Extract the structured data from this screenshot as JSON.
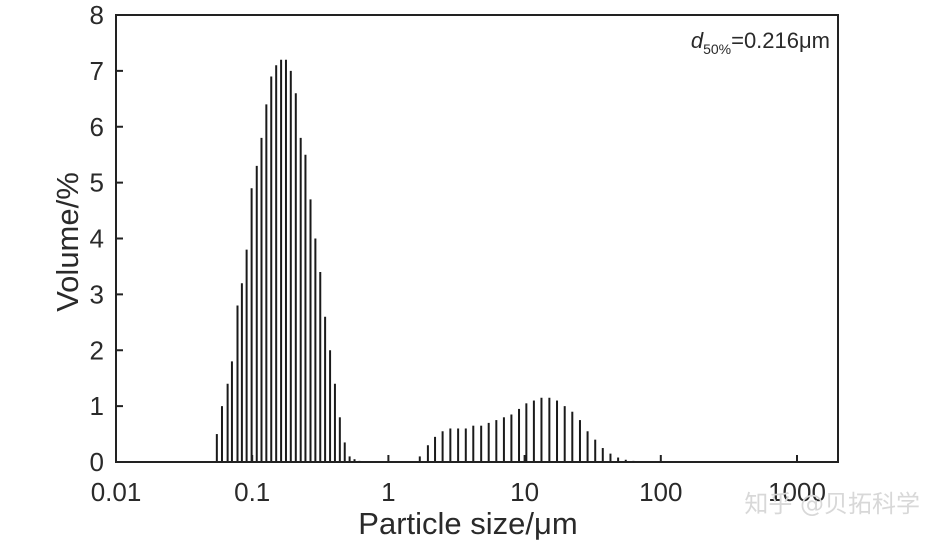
{
  "chart_data": {
    "type": "bar",
    "title": "",
    "xlabel": "Particle size/μm",
    "ylabel": "Volume/%",
    "xscale": "log",
    "xlim": [
      0.01,
      2000
    ],
    "ylim": [
      0,
      8
    ],
    "xticks": [
      0.01,
      0.1,
      1,
      10,
      100,
      1000
    ],
    "xtick_labels": [
      "0.01",
      "0.1",
      "1",
      "10",
      "100",
      "1000"
    ],
    "yticks": [
      0,
      1,
      2,
      3,
      4,
      5,
      6,
      7,
      8
    ],
    "ytick_labels": [
      "0",
      "1",
      "2",
      "3",
      "4",
      "5",
      "6",
      "7",
      "8"
    ],
    "grid": false,
    "annotation": {
      "italic": "d",
      "subscript": "50%",
      "text": "=0.216μm"
    },
    "series": [
      {
        "name": "Volume",
        "x": [
          0.055,
          0.06,
          0.066,
          0.071,
          0.078,
          0.084,
          0.091,
          0.099,
          0.108,
          0.117,
          0.127,
          0.138,
          0.15,
          0.163,
          0.177,
          0.192,
          0.209,
          0.227,
          0.246,
          0.268,
          0.291,
          0.316,
          0.343,
          0.373,
          0.405,
          0.44,
          0.478,
          0.519,
          0.564,
          0.613,
          0.7,
          1.7,
          1.95,
          2.2,
          2.5,
          2.85,
          3.25,
          3.7,
          4.2,
          4.8,
          5.45,
          6.2,
          7.05,
          8.0,
          9.1,
          10.3,
          11.7,
          13.3,
          15.2,
          17.3,
          19.7,
          22.4,
          25.5,
          29.0,
          33.0,
          37.5,
          42.7,
          48.6,
          55.3,
          62.9,
          71.6,
          81.5,
          92.7
        ],
        "values": [
          0.5,
          1.0,
          1.4,
          1.8,
          2.8,
          3.2,
          3.8,
          4.9,
          5.3,
          5.8,
          6.4,
          6.9,
          7.1,
          7.2,
          7.2,
          7.0,
          6.6,
          5.8,
          5.5,
          4.7,
          4.0,
          3.4,
          2.6,
          2.0,
          1.4,
          0.8,
          0.35,
          0.1,
          0.05,
          0.02,
          0.0,
          0.1,
          0.3,
          0.45,
          0.55,
          0.6,
          0.6,
          0.6,
          0.65,
          0.65,
          0.7,
          0.75,
          0.8,
          0.85,
          0.95,
          1.05,
          1.1,
          1.15,
          1.15,
          1.1,
          1.0,
          0.9,
          0.75,
          0.55,
          0.4,
          0.25,
          0.15,
          0.08,
          0.04,
          0.02,
          0.0,
          0.0,
          0.0
        ]
      }
    ]
  },
  "watermark": "知乎 @贝拓科学"
}
